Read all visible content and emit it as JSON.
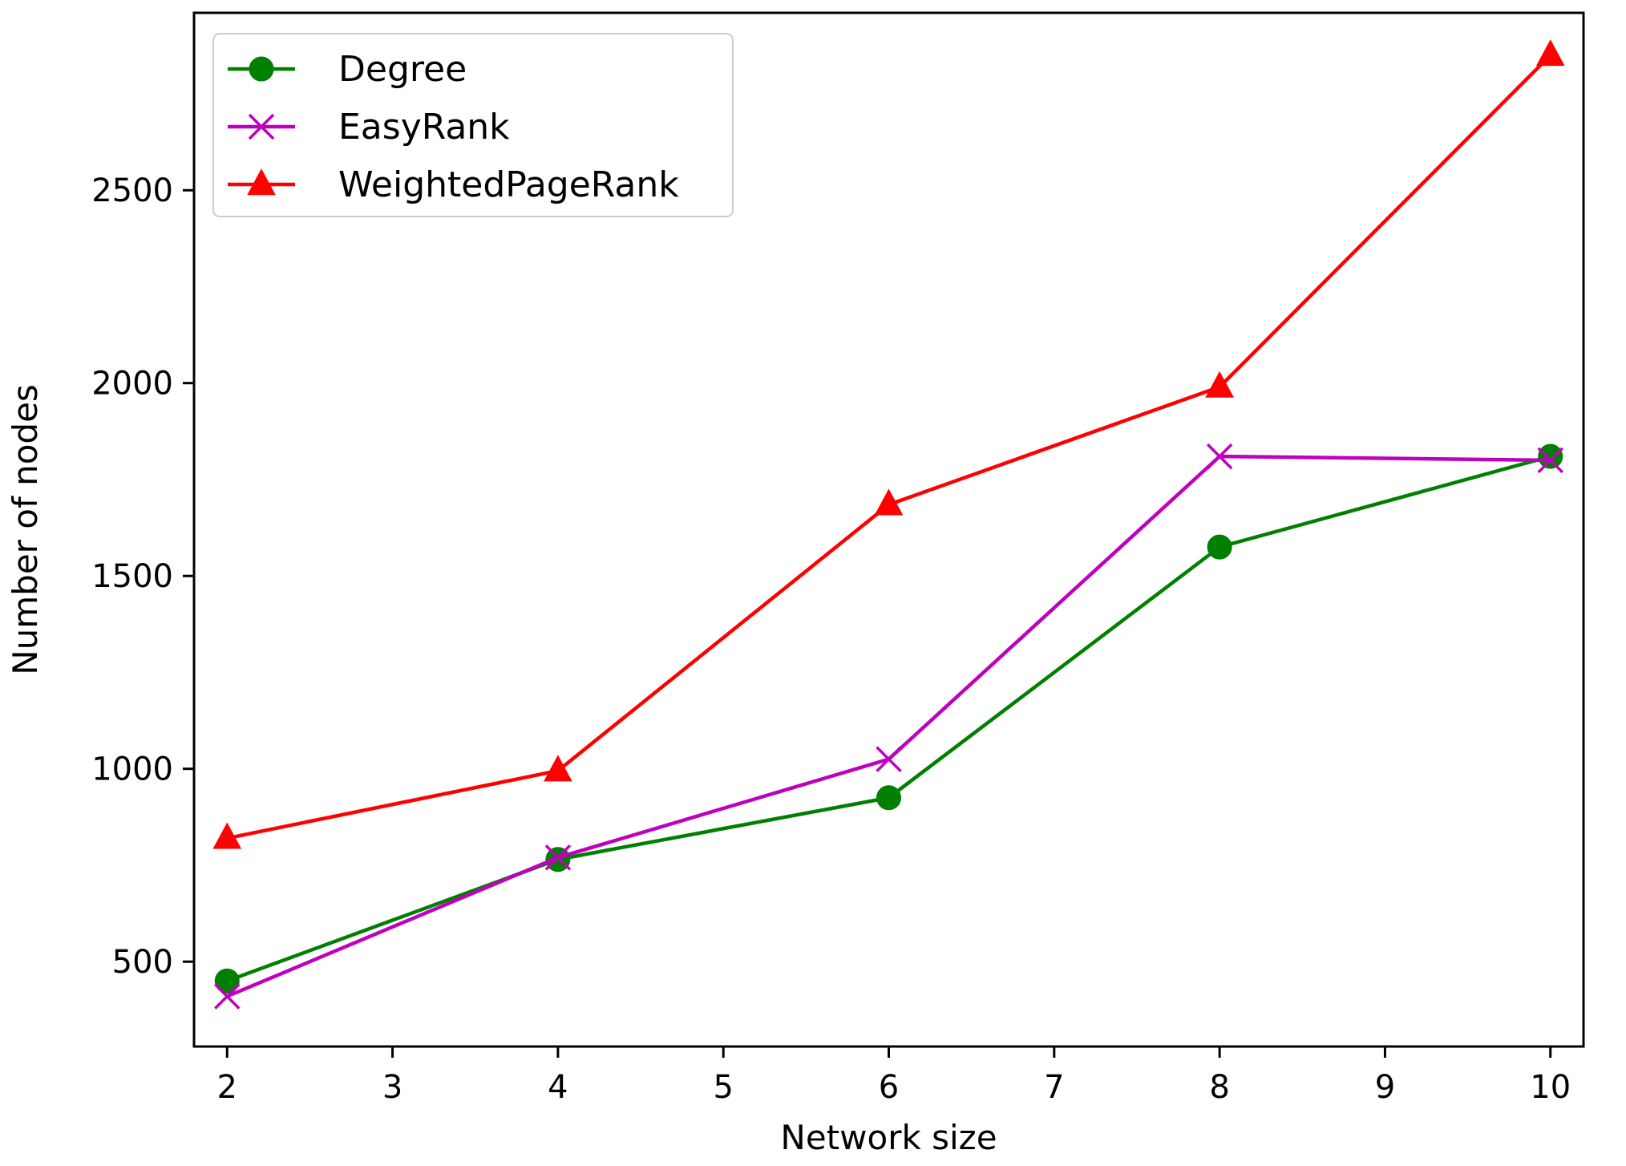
{
  "chart_data": {
    "type": "line",
    "xlabel": "Network size",
    "ylabel": "Number of nodes",
    "xlim": [
      1.8,
      10.2
    ],
    "ylim": [
      280,
      2960
    ],
    "x_ticks": [
      2,
      3,
      4,
      5,
      6,
      7,
      8,
      9,
      10
    ],
    "y_ticks": [
      500,
      1000,
      1500,
      2000,
      2500
    ],
    "x": [
      2,
      4,
      6,
      8,
      10
    ],
    "grid": false,
    "legend_position": "top-left",
    "series": [
      {
        "name": "Degree",
        "values": [
          450,
          765,
          925,
          1575,
          1810
        ],
        "color": "#007f00",
        "marker": "circle"
      },
      {
        "name": "EasyRank",
        "values": [
          410,
          770,
          1025,
          1810,
          1800
        ],
        "color": "#bf00bf",
        "marker": "x"
      },
      {
        "name": "WeightedPageRank",
        "values": [
          820,
          995,
          1685,
          1990,
          2850
        ],
        "color": "#ff0000",
        "marker": "triangle"
      }
    ]
  }
}
